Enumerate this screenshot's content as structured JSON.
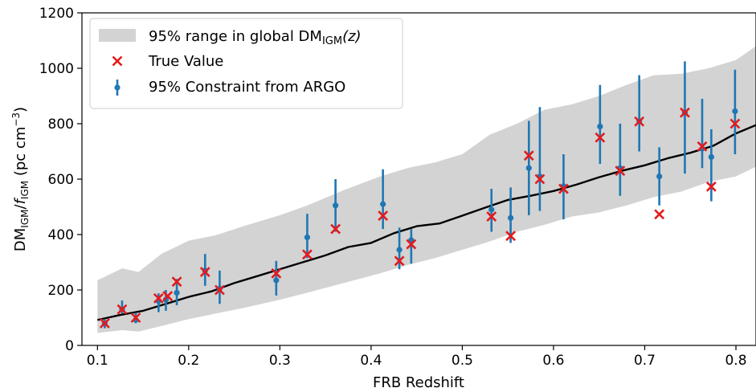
{
  "chart_data": {
    "type": "scatter",
    "xlabel": "FRB Redshift",
    "ylabel": {
      "main": "DM",
      "main_sub": "IGM",
      "divider": "/",
      "fvar": "f",
      "fvar_sub": "IGM",
      "unit": " (pc cm",
      "unit_sup": "−3",
      "unit_end": ")"
    },
    "xlim": [
      0.083,
      0.822
    ],
    "ylim": [
      0,
      1200
    ],
    "x_ticks": [
      0.1,
      0.2,
      0.3,
      0.4,
      0.5,
      0.6,
      0.7,
      0.8
    ],
    "x_tick_labels": [
      "0.1",
      "0.2",
      "0.3",
      "0.4",
      "0.5",
      "0.6",
      "0.7",
      "0.8"
    ],
    "y_ticks": [
      0,
      200,
      400,
      600,
      800,
      1000,
      1200
    ],
    "y_tick_labels": [
      "0",
      "200",
      "400",
      "600",
      "800",
      "1000",
      "1200"
    ],
    "grid": false,
    "legend_position": "top-left",
    "colors": {
      "band": "#d3d3d3",
      "median_line": "#000000",
      "true_marker": "#e41a1c",
      "constraint": "#1f77b4"
    },
    "legend": [
      {
        "key": "band",
        "label_main": "95% range in global DM",
        "label_sub": "IGM",
        "label_tail": "(z)"
      },
      {
        "key": "true",
        "label": "True Value"
      },
      {
        "key": "constraint",
        "label": "95% Constraint from ARGO"
      }
    ],
    "band": {
      "x": [
        0.1,
        0.127,
        0.145,
        0.17,
        0.2,
        0.23,
        0.26,
        0.3,
        0.33,
        0.37,
        0.41,
        0.44,
        0.47,
        0.5,
        0.53,
        0.56,
        0.59,
        0.62,
        0.65,
        0.68,
        0.71,
        0.74,
        0.77,
        0.8,
        0.822
      ],
      "upper": [
        235,
        278,
        265,
        330,
        378,
        398,
        430,
        470,
        505,
        560,
        610,
        640,
        660,
        690,
        760,
        800,
        850,
        870,
        900,
        940,
        975,
        980,
        1000,
        1030,
        1080
      ],
      "lower": [
        45,
        55,
        50,
        70,
        95,
        115,
        135,
        165,
        190,
        225,
        260,
        290,
        315,
        345,
        375,
        410,
        435,
        465,
        480,
        505,
        535,
        555,
        590,
        610,
        645
      ]
    },
    "median": {
      "x": [
        0.1,
        0.125,
        0.15,
        0.175,
        0.2,
        0.225,
        0.25,
        0.275,
        0.3,
        0.325,
        0.35,
        0.375,
        0.4,
        0.425,
        0.45,
        0.475,
        0.5,
        0.525,
        0.55,
        0.575,
        0.6,
        0.625,
        0.65,
        0.675,
        0.7,
        0.725,
        0.75,
        0.775,
        0.8,
        0.822
      ],
      "y": [
        92,
        110,
        125,
        150,
        175,
        195,
        225,
        250,
        275,
        300,
        325,
        355,
        370,
        405,
        430,
        440,
        468,
        497,
        525,
        540,
        557,
        580,
        607,
        630,
        650,
        675,
        695,
        720,
        765,
        795
      ]
    },
    "constraints": [
      {
        "x": 0.108,
        "y": 80,
        "lo": 62,
        "hi": 95
      },
      {
        "x": 0.127,
        "y": 130,
        "lo": 115,
        "hi": 162
      },
      {
        "x": 0.142,
        "y": 92,
        "lo": 80,
        "hi": 118
      },
      {
        "x": 0.167,
        "y": 160,
        "lo": 120,
        "hi": 188
      },
      {
        "x": 0.175,
        "y": 165,
        "lo": 125,
        "hi": 200
      },
      {
        "x": 0.187,
        "y": 190,
        "lo": 145,
        "hi": 240
      },
      {
        "x": 0.218,
        "y": 270,
        "lo": 215,
        "hi": 330
      },
      {
        "x": 0.234,
        "y": 205,
        "lo": 150,
        "hi": 270
      },
      {
        "x": 0.296,
        "y": 235,
        "lo": 180,
        "hi": 305
      },
      {
        "x": 0.33,
        "y": 390,
        "lo": 315,
        "hi": 475
      },
      {
        "x": 0.361,
        "y": 505,
        "lo": 410,
        "hi": 600
      },
      {
        "x": 0.413,
        "y": 510,
        "lo": 420,
        "hi": 635
      },
      {
        "x": 0.431,
        "y": 345,
        "lo": 275,
        "hi": 425
      },
      {
        "x": 0.444,
        "y": 380,
        "lo": 295,
        "hi": 420
      },
      {
        "x": 0.532,
        "y": 490,
        "lo": 410,
        "hi": 565
      },
      {
        "x": 0.553,
        "y": 460,
        "lo": 370,
        "hi": 570
      },
      {
        "x": 0.573,
        "y": 640,
        "lo": 470,
        "hi": 810
      },
      {
        "x": 0.585,
        "y": 610,
        "lo": 485,
        "hi": 860
      },
      {
        "x": 0.611,
        "y": 575,
        "lo": 455,
        "hi": 690
      },
      {
        "x": 0.651,
        "y": 790,
        "lo": 655,
        "hi": 940
      },
      {
        "x": 0.673,
        "y": 640,
        "lo": 540,
        "hi": 800
      },
      {
        "x": 0.694,
        "y": 810,
        "lo": 700,
        "hi": 975
      },
      {
        "x": 0.716,
        "y": 610,
        "lo": 505,
        "hi": 715
      },
      {
        "x": 0.744,
        "y": 840,
        "lo": 620,
        "hi": 1025
      },
      {
        "x": 0.763,
        "y": 710,
        "lo": 640,
        "hi": 890
      },
      {
        "x": 0.773,
        "y": 680,
        "lo": 520,
        "hi": 780
      },
      {
        "x": 0.799,
        "y": 845,
        "lo": 690,
        "hi": 995
      }
    ],
    "true_values": [
      {
        "x": 0.108,
        "y": 80
      },
      {
        "x": 0.127,
        "y": 130
      },
      {
        "x": 0.142,
        "y": 100
      },
      {
        "x": 0.167,
        "y": 170
      },
      {
        "x": 0.177,
        "y": 178
      },
      {
        "x": 0.187,
        "y": 230
      },
      {
        "x": 0.218,
        "y": 265
      },
      {
        "x": 0.234,
        "y": 200
      },
      {
        "x": 0.296,
        "y": 260
      },
      {
        "x": 0.33,
        "y": 328
      },
      {
        "x": 0.361,
        "y": 420
      },
      {
        "x": 0.413,
        "y": 468
      },
      {
        "x": 0.431,
        "y": 305
      },
      {
        "x": 0.444,
        "y": 365
      },
      {
        "x": 0.532,
        "y": 465
      },
      {
        "x": 0.553,
        "y": 395
      },
      {
        "x": 0.573,
        "y": 685
      },
      {
        "x": 0.585,
        "y": 600
      },
      {
        "x": 0.611,
        "y": 565
      },
      {
        "x": 0.651,
        "y": 750
      },
      {
        "x": 0.673,
        "y": 630
      },
      {
        "x": 0.694,
        "y": 808
      },
      {
        "x": 0.716,
        "y": 473
      },
      {
        "x": 0.744,
        "y": 840
      },
      {
        "x": 0.763,
        "y": 718
      },
      {
        "x": 0.773,
        "y": 573
      },
      {
        "x": 0.799,
        "y": 800
      }
    ]
  }
}
